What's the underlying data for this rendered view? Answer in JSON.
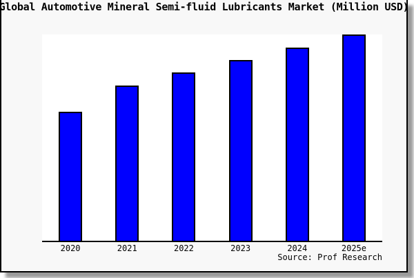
{
  "title": "Global Automotive Mineral Semi-fluid Lubricants Market (Million USD)",
  "source": "Source: Prof Research",
  "colors": {
    "figure_bg": "#f8f8f8",
    "plot_bg": "#ffffff",
    "frame": "#000000",
    "bar_fill": "#0000ff",
    "bar_edge": "#000000",
    "axis": "#000000",
    "shadow": "#9a9a9a"
  },
  "chart_data": {
    "type": "bar",
    "title": "Global Automotive Mineral Semi-fluid Lubricants Market (Million USD)",
    "categories": [
      "2020",
      "2021",
      "2022",
      "2023",
      "2024",
      "2025e"
    ],
    "values": [
      62.5,
      75.2,
      81.7,
      87.7,
      93.8,
      100
    ],
    "series_note": "No y-axis or value labels shown; values are bar heights normalized to 2025e = 100",
    "xlabel": "",
    "ylabel": "",
    "ylim": [
      0,
      100
    ],
    "grid": false,
    "legend": false,
    "annotations": [
      "Source: Prof Research"
    ]
  }
}
